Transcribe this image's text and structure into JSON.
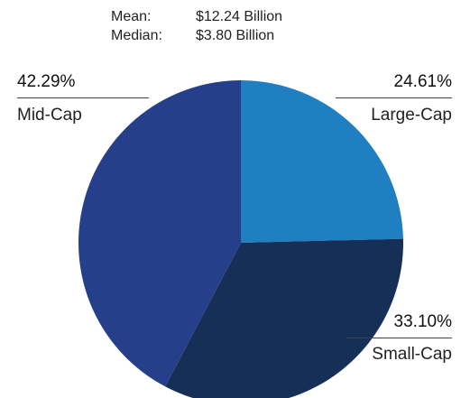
{
  "stats": {
    "mean_label": "Mean:",
    "mean_value": "$12.24 Billion",
    "median_label": "Median:",
    "median_value": "$3.80 Billion"
  },
  "chart_data": {
    "type": "pie",
    "categories": [
      "Large-Cap",
      "Small-Cap",
      "Mid-Cap"
    ],
    "values": [
      24.61,
      33.1,
      42.29
    ],
    "labels": [
      "24.61%",
      "33.10%",
      "42.29%"
    ],
    "colors": [
      "#1f7fc0",
      "#152f57",
      "#253f8a"
    ],
    "start_angle_deg": 0,
    "direction": "clockwise"
  }
}
